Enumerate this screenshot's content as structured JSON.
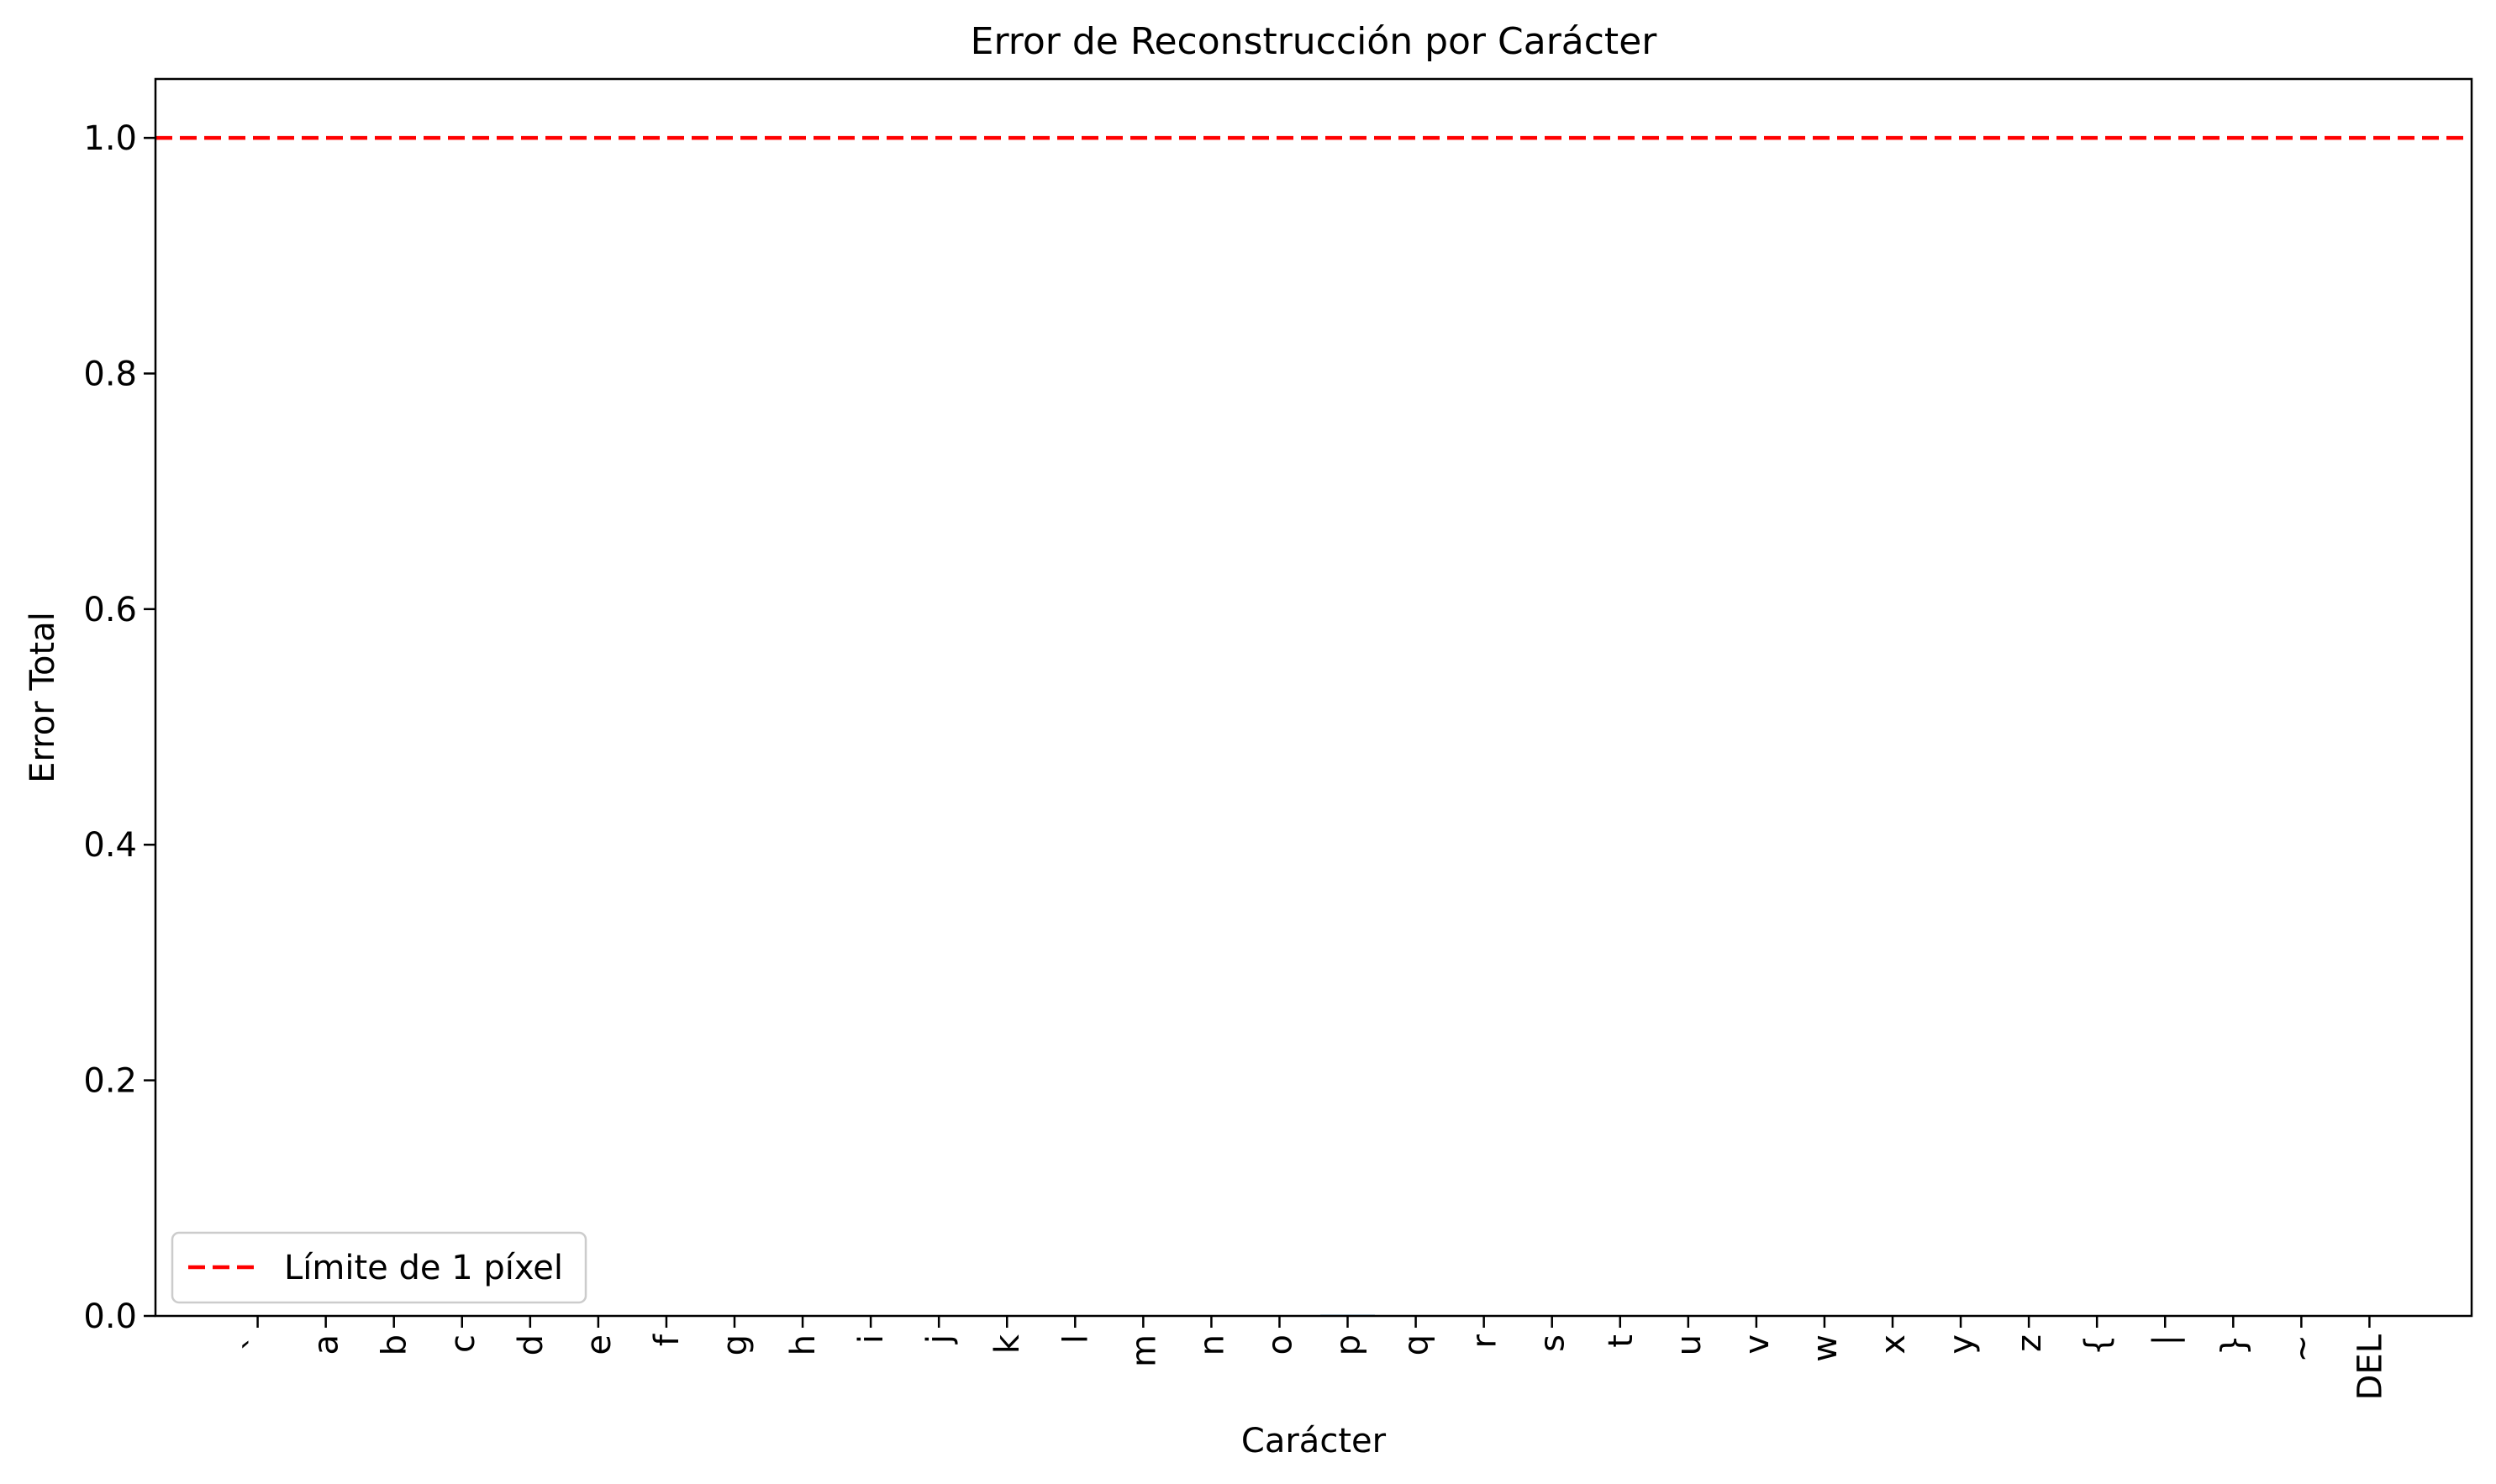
{
  "chart_data": {
    "type": "bar",
    "title": "Error de Reconstrucción por Carácter",
    "xlabel": "Carácter",
    "ylabel": "Error Total",
    "ylim": [
      0,
      1.05
    ],
    "xlim": [
      -1.5,
      32.5
    ],
    "yticks": [
      "0.0",
      "0.2",
      "0.4",
      "0.6",
      "0.8",
      "1.0"
    ],
    "categories": [
      "`",
      "a",
      "b",
      "c",
      "d",
      "e",
      "f",
      "g",
      "h",
      "i",
      "j",
      "k",
      "l",
      "m",
      "n",
      "o",
      "p",
      "q",
      "r",
      "s",
      "t",
      "u",
      "v",
      "w",
      "x",
      "y",
      "z",
      "{",
      "|",
      "}",
      "~",
      "DEL"
    ],
    "values": [
      0,
      0,
      0,
      0,
      0,
      0,
      0,
      0,
      0,
      0,
      0,
      0,
      0,
      0,
      0,
      0,
      0.001,
      0,
      0,
      0,
      0,
      0,
      0,
      0,
      0,
      0,
      0,
      0,
      0,
      0,
      0,
      0
    ],
    "bar_color": "#1f77b4",
    "threshold": {
      "value": 1.0,
      "label": "Límite de 1 píxel",
      "color": "#ff0000",
      "style": "dashed"
    },
    "legend_position": "lower-left",
    "grid": false
  }
}
